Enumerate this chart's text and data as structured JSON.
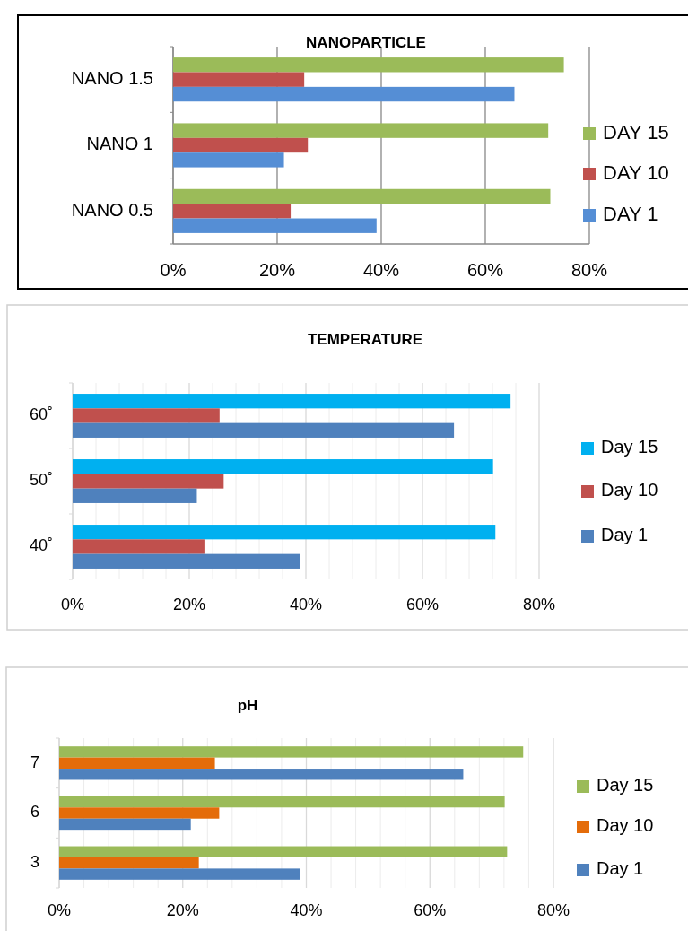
{
  "chart_data": [
    {
      "type": "bar",
      "orientation": "horizontal",
      "title": "NANOPARTICLE",
      "categories": [
        "NANO 1.5",
        "NANO 1",
        "NANO 0.5"
      ],
      "series": [
        {
          "name": "DAY 15",
          "color": "#9bbb59",
          "values": [
            75.1,
            72.1,
            72.5
          ]
        },
        {
          "name": "DAY 10",
          "color": "#c0504d",
          "values": [
            25.2,
            25.9,
            22.6
          ]
        },
        {
          "name": "DAY 1",
          "color": "#558ed5",
          "values": [
            65.6,
            21.3,
            39.1
          ]
        }
      ],
      "xlim": [
        0,
        80
      ],
      "xticks": [
        {
          "value": 0,
          "label": "0%"
        },
        {
          "value": 20,
          "label": "20%"
        },
        {
          "value": 40,
          "label": "40%"
        },
        {
          "value": 60,
          "label": "60%"
        },
        {
          "value": 80,
          "label": "80%"
        }
      ],
      "grid": "x",
      "legend": "right"
    },
    {
      "type": "bar",
      "orientation": "horizontal",
      "title": "TEMPERATURE",
      "categories": [
        "60˚",
        "50˚",
        "40˚"
      ],
      "series": [
        {
          "name": "Day 15",
          "color": "#00b0f0",
          "values": [
            75.1,
            72.1,
            72.5
          ]
        },
        {
          "name": "Day 10",
          "color": "#c0504d",
          "values": [
            25.2,
            25.9,
            22.6
          ]
        },
        {
          "name": "Day 1",
          "color": "#4f81bd",
          "values": [
            65.4,
            21.3,
            39.0
          ]
        }
      ],
      "xlim": [
        0,
        80
      ],
      "xticks": [
        {
          "value": 0,
          "label": "0%"
        },
        {
          "value": 4,
          "label": null
        },
        {
          "value": 8,
          "label": null
        },
        {
          "value": 12,
          "label": null
        },
        {
          "value": 16,
          "label": null
        },
        {
          "value": 20,
          "label": "20%"
        },
        {
          "value": 24,
          "label": null
        },
        {
          "value": 28,
          "label": null
        },
        {
          "value": 32,
          "label": null
        },
        {
          "value": 36,
          "label": null
        },
        {
          "value": 40,
          "label": "40%"
        },
        {
          "value": 44,
          "label": null
        },
        {
          "value": 48,
          "label": null
        },
        {
          "value": 52,
          "label": null
        },
        {
          "value": 56,
          "label": null
        },
        {
          "value": 60,
          "label": "60%"
        },
        {
          "value": 64,
          "label": null
        },
        {
          "value": 68,
          "label": null
        },
        {
          "value": 72,
          "label": null
        },
        {
          "value": 76,
          "label": null
        },
        {
          "value": 80,
          "label": "80%"
        }
      ],
      "grid": "x",
      "legend": "right"
    },
    {
      "type": "bar",
      "orientation": "horizontal",
      "title": "pH",
      "categories": [
        "7",
        "6",
        "3"
      ],
      "series": [
        {
          "name": "Day 15",
          "color": "#9bbb59",
          "values": [
            75.1,
            72.1,
            72.5
          ]
        },
        {
          "name": "Day 10",
          "color": "#e46c0a",
          "values": [
            25.2,
            25.9,
            22.6
          ]
        },
        {
          "name": "Day 1",
          "color": "#4f81bd",
          "values": [
            65.4,
            21.3,
            39.0
          ]
        }
      ],
      "xlim": [
        0,
        80
      ],
      "xticks": [
        {
          "value": 0,
          "label": "0%"
        },
        {
          "value": 4,
          "label": null
        },
        {
          "value": 8,
          "label": null
        },
        {
          "value": 12,
          "label": null
        },
        {
          "value": 16,
          "label": null
        },
        {
          "value": 20,
          "label": "20%"
        },
        {
          "value": 24,
          "label": null
        },
        {
          "value": 28,
          "label": null
        },
        {
          "value": 32,
          "label": null
        },
        {
          "value": 36,
          "label": null
        },
        {
          "value": 40,
          "label": "40%"
        },
        {
          "value": 44,
          "label": null
        },
        {
          "value": 48,
          "label": null
        },
        {
          "value": 52,
          "label": null
        },
        {
          "value": 56,
          "label": null
        },
        {
          "value": 60,
          "label": "60%"
        },
        {
          "value": 64,
          "label": null
        },
        {
          "value": 68,
          "label": null
        },
        {
          "value": 72,
          "label": null
        },
        {
          "value": 76,
          "label": null
        },
        {
          "value": 80,
          "label": "80%"
        }
      ],
      "grid": "x",
      "legend": "right"
    }
  ]
}
